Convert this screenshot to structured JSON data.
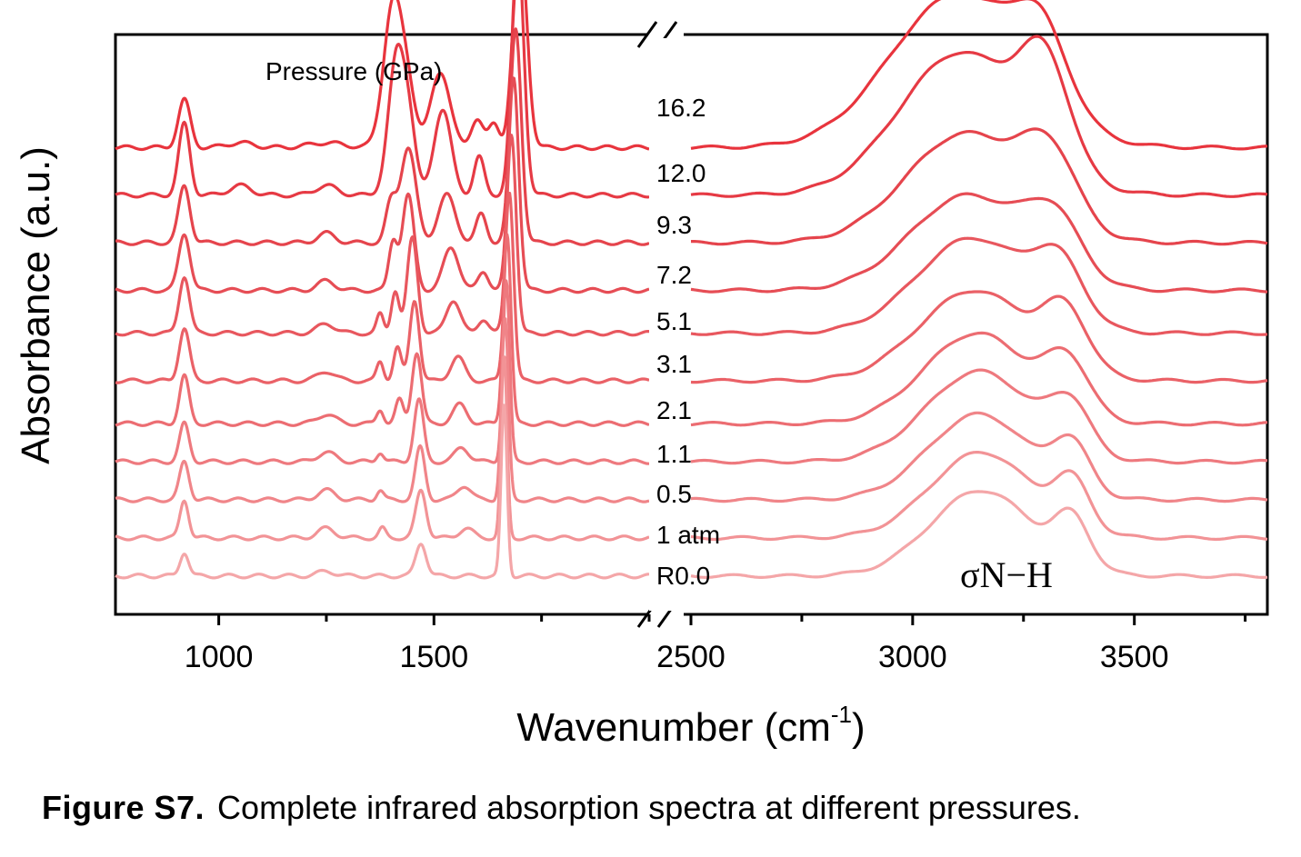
{
  "chart_data": {
    "type": "line",
    "title": "",
    "xlabel": "Wavenumber (cm",
    "xlabel_sup": "-1",
    "xlabel_close": ")",
    "ylabel": "Absorbance (a.u.)",
    "legend_title": "Pressure (GPa)",
    "annotation": "σN−H",
    "x_axis_break": true,
    "x_segments": [
      {
        "xlim": [
          760,
          2000
        ],
        "ticks": [
          1000,
          1500
        ]
      },
      {
        "xlim": [
          2500,
          3800
        ],
        "ticks": [
          2500,
          3000,
          3500
        ]
      }
    ],
    "tick_labels": [
      "1000",
      "1500",
      "2500",
      "3000",
      "3500"
    ],
    "peaks": {
      "low": [
        920,
        1280,
        1430,
        1450,
        1530,
        1610,
        1690
      ],
      "high_center_3150_shoulder": 3350
    },
    "series": [
      {
        "name": "16.2",
        "color": "#e8343d",
        "baseline": 0.95,
        "peaks": [
          [
            920,
            0.1,
            14
          ],
          [
            1050,
            0.01,
            30
          ],
          [
            1250,
            0.01,
            40
          ],
          [
            1405,
            0.3,
            22
          ],
          [
            1440,
            0.1,
            18
          ],
          [
            1515,
            0.16,
            22
          ],
          [
            1600,
            0.06,
            14
          ],
          [
            1700,
            0.44,
            16
          ],
          [
            1640,
            0.05,
            12
          ]
        ],
        "nh": [
          [
            3100,
            0.32,
            150
          ],
          [
            3290,
            0.15,
            60
          ]
        ]
      },
      {
        "name": "12.0",
        "color": "#e63a44",
        "baseline": 0.85,
        "peaks": [
          [
            920,
            0.15,
            13
          ],
          [
            1050,
            0.02,
            25
          ],
          [
            1250,
            0.02,
            25
          ],
          [
            1415,
            0.3,
            20
          ],
          [
            1445,
            0.1,
            15
          ],
          [
            1520,
            0.18,
            20
          ],
          [
            1605,
            0.08,
            12
          ],
          [
            1695,
            0.52,
            14
          ]
        ],
        "nh": [
          [
            3110,
            0.3,
            140
          ],
          [
            3300,
            0.2,
            55
          ]
        ]
      },
      {
        "name": "9.3",
        "color": "#e5444c",
        "baseline": 0.75,
        "peaks": [
          [
            920,
            0.12,
            13
          ],
          [
            1250,
            0.02,
            20
          ],
          [
            1400,
            0.08,
            12
          ],
          [
            1440,
            0.2,
            18
          ],
          [
            1530,
            0.1,
            20
          ],
          [
            1610,
            0.06,
            12
          ],
          [
            1690,
            0.45,
            13
          ]
        ],
        "nh": [
          [
            3120,
            0.23,
            135
          ],
          [
            3310,
            0.14,
            60
          ]
        ]
      },
      {
        "name": "7.2",
        "color": "#e64d55",
        "baseline": 0.65,
        "peaks": [
          [
            920,
            0.12,
            13
          ],
          [
            1250,
            0.02,
            20
          ],
          [
            1405,
            0.1,
            10
          ],
          [
            1440,
            0.2,
            14
          ],
          [
            1540,
            0.09,
            18
          ],
          [
            1615,
            0.04,
            12
          ],
          [
            1685,
            0.45,
            12
          ]
        ],
        "nh": [
          [
            3125,
            0.2,
            130
          ],
          [
            3320,
            0.12,
            60
          ]
        ]
      },
      {
        "name": "5.1",
        "color": "#e8575e",
        "baseline": 0.56,
        "peaks": [
          [
            920,
            0.12,
            12
          ],
          [
            1250,
            0.02,
            20
          ],
          [
            1375,
            0.04,
            8
          ],
          [
            1410,
            0.09,
            9
          ],
          [
            1450,
            0.2,
            12
          ],
          [
            1545,
            0.07,
            16
          ],
          [
            1615,
            0.03,
            12
          ],
          [
            1680,
            0.42,
            11
          ]
        ],
        "nh": [
          [
            3135,
            0.2,
            125
          ],
          [
            3330,
            0.12,
            55
          ]
        ]
      },
      {
        "name": "3.1",
        "color": "#ea6167",
        "baseline": 0.46,
        "peaks": [
          [
            920,
            0.11,
            12
          ],
          [
            1250,
            0.02,
            20
          ],
          [
            1375,
            0.04,
            8
          ],
          [
            1415,
            0.07,
            9
          ],
          [
            1455,
            0.17,
            11
          ],
          [
            1555,
            0.05,
            16
          ],
          [
            1675,
            0.4,
            10
          ]
        ],
        "nh": [
          [
            3140,
            0.19,
            125
          ],
          [
            3345,
            0.12,
            50
          ]
        ]
      },
      {
        "name": "2.1",
        "color": "#ec6d72",
        "baseline": 0.37,
        "peaks": [
          [
            920,
            0.1,
            11
          ],
          [
            1250,
            0.02,
            20
          ],
          [
            1375,
            0.03,
            8
          ],
          [
            1420,
            0.05,
            9
          ],
          [
            1460,
            0.15,
            11
          ],
          [
            1560,
            0.04,
            16
          ],
          [
            1670,
            0.4,
            9
          ]
        ],
        "nh": [
          [
            3145,
            0.19,
            120
          ],
          [
            3350,
            0.11,
            48
          ]
        ]
      },
      {
        "name": "1.1",
        "color": "#ee797e",
        "baseline": 0.29,
        "peaks": [
          [
            920,
            0.08,
            11
          ],
          [
            1250,
            0.02,
            20
          ],
          [
            1375,
            0.02,
            8
          ],
          [
            1465,
            0.13,
            11
          ],
          [
            1565,
            0.03,
            16
          ],
          [
            1668,
            0.38,
            8
          ]
        ],
        "nh": [
          [
            3150,
            0.19,
            120
          ],
          [
            3355,
            0.1,
            45
          ]
        ]
      },
      {
        "name": "0.5",
        "color": "#f08589",
        "baseline": 0.21,
        "peaks": [
          [
            920,
            0.08,
            11
          ],
          [
            1250,
            0.02,
            20
          ],
          [
            1375,
            0.02,
            8
          ],
          [
            1468,
            0.11,
            11
          ],
          [
            1570,
            0.03,
            16
          ],
          [
            1665,
            0.38,
            8
          ]
        ],
        "nh": [
          [
            3150,
            0.18,
            115
          ],
          [
            3358,
            0.1,
            42
          ]
        ]
      },
      {
        "name": "1 atm",
        "color": "#f29396",
        "baseline": 0.13,
        "peaks": [
          [
            920,
            0.08,
            10
          ],
          [
            1250,
            0.02,
            20
          ],
          [
            1380,
            0.02,
            8
          ],
          [
            1470,
            0.1,
            12
          ],
          [
            1575,
            0.02,
            16
          ],
          [
            1663,
            0.38,
            7
          ]
        ],
        "nh": [
          [
            3155,
            0.18,
            115
          ],
          [
            3360,
            0.1,
            40
          ]
        ]
      },
      {
        "name": "R0.0",
        "color": "#f4a6a8",
        "baseline": 0.05,
        "peaks": [
          [
            920,
            0.05,
            10
          ],
          [
            1250,
            0.01,
            20
          ],
          [
            1470,
            0.07,
            12
          ],
          [
            1663,
            0.36,
            7
          ]
        ],
        "nh": [
          [
            3155,
            0.18,
            115
          ],
          [
            3360,
            0.1,
            40
          ]
        ]
      }
    ]
  },
  "caption": {
    "label": "Figure S7.",
    "text": "Complete infrared absorption spectra at different pressures."
  }
}
